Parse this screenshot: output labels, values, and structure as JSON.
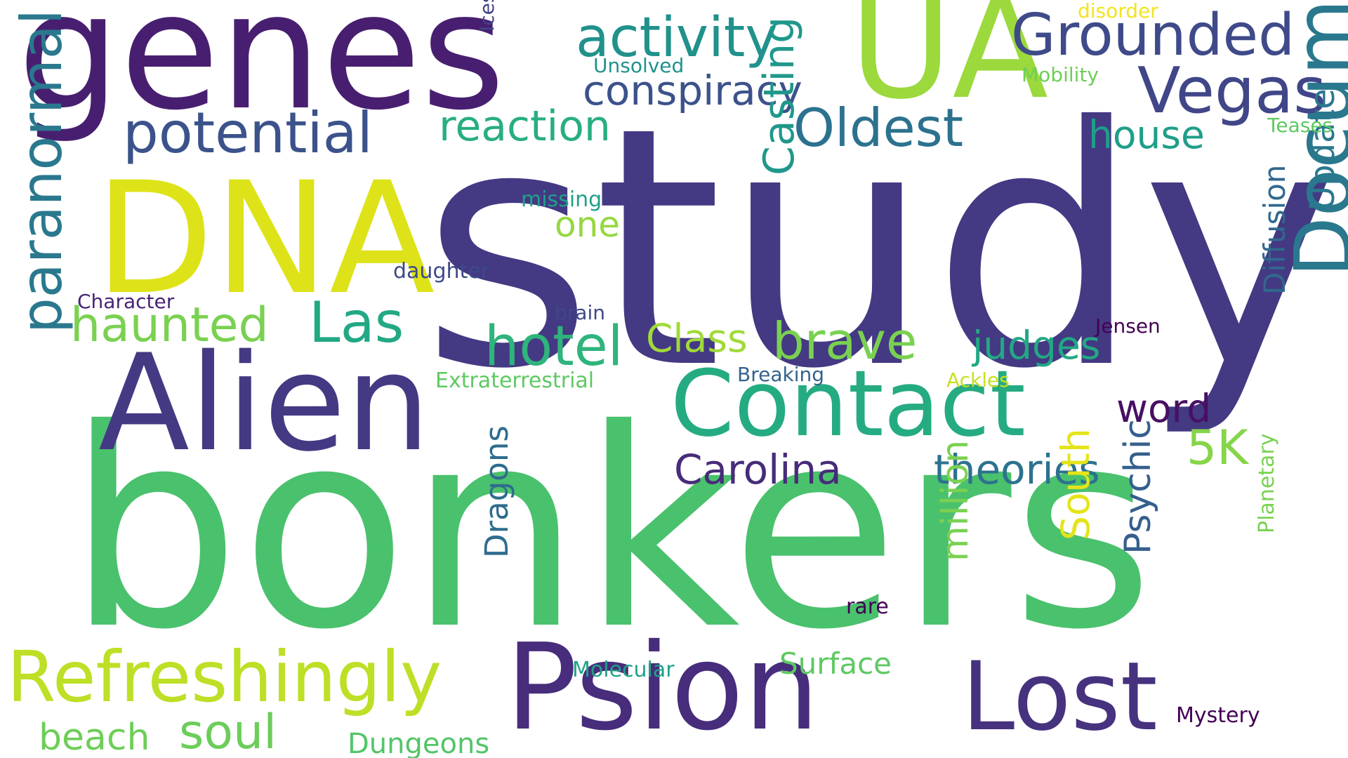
{
  "words": [
    {
      "id": "study",
      "text": "study",
      "color": "#443983"
    },
    {
      "id": "bonkers",
      "text": "bonkers",
      "color": "#4ac16d"
    },
    {
      "id": "genes",
      "text": "genes",
      "color": "#481f70"
    },
    {
      "id": "alien",
      "text": "Alien",
      "color": "#443983"
    },
    {
      "id": "dna",
      "text": "DNA",
      "color": "#dde318"
    },
    {
      "id": "ua",
      "text": "UA",
      "color": "#9bd93c"
    },
    {
      "id": "psion",
      "text": "Psion",
      "color": "#472d7b"
    },
    {
      "id": "contact",
      "text": "Contact",
      "color": "#25ab82"
    },
    {
      "id": "documentary",
      "text": "Documentary",
      "color": "#2a788e"
    },
    {
      "id": "lost",
      "text": "Lost",
      "color": "#46327e"
    },
    {
      "id": "refreshingly",
      "text": "Refreshingly",
      "color": "#bddf26"
    },
    {
      "id": "grounded",
      "text": "Grounded",
      "color": "#3e4a89"
    },
    {
      "id": "vegas",
      "text": "Vegas",
      "color": "#404688"
    },
    {
      "id": "potential",
      "text": "potential",
      "color": "#3b528b"
    },
    {
      "id": "activity",
      "text": "activity",
      "color": "#21918c"
    },
    {
      "id": "paranormal",
      "text": "paranormal",
      "color": "#2a788e"
    },
    {
      "id": "oldest",
      "text": "Oldest",
      "color": "#2c728e"
    },
    {
      "id": "las",
      "text": "Las",
      "color": "#22a884"
    },
    {
      "id": "haunted",
      "text": "haunted",
      "color": "#7ad151"
    },
    {
      "id": "hotel",
      "text": "hotel",
      "color": "#2fb47c"
    },
    {
      "id": "brave",
      "text": "brave",
      "color": "#7ad151"
    },
    {
      "id": "conspiracy",
      "text": "conspiracy",
      "color": "#3b528b"
    },
    {
      "id": "reaction",
      "text": "reaction",
      "color": "#28ae80"
    },
    {
      "id": "casting",
      "text": "Casting",
      "color": "#1f988b"
    },
    {
      "id": "house",
      "text": "house",
      "color": "#1f9e89"
    },
    {
      "id": "update",
      "text": "Update",
      "color": "#2a788e"
    },
    {
      "id": "diffusion",
      "text": "Diffusion",
      "color": "#31688e"
    },
    {
      "id": "5k",
      "text": "5K",
      "color": "#86d549"
    },
    {
      "id": "carolina",
      "text": "Carolina",
      "color": "#472c7a"
    },
    {
      "id": "theories",
      "text": "theories",
      "color": "#2c728e"
    },
    {
      "id": "judges",
      "text": "judges",
      "color": "#22a884"
    },
    {
      "id": "class",
      "text": "Class",
      "color": "#a0da39"
    },
    {
      "id": "word",
      "text": "word",
      "color": "#471063"
    },
    {
      "id": "million",
      "text": "million",
      "color": "#7ad151"
    },
    {
      "id": "south",
      "text": "South",
      "color": "#e5e419"
    },
    {
      "id": "psychic",
      "text": "Psychic",
      "color": "#355f8d"
    },
    {
      "id": "dragons",
      "text": "Dragons",
      "color": "#2f6c8e"
    },
    {
      "id": "soul",
      "text": "soul",
      "color": "#6ccd5a"
    },
    {
      "id": "beach",
      "text": "beach",
      "color": "#6ece58"
    },
    {
      "id": "dungeons",
      "text": "Dungeons",
      "color": "#52c569"
    },
    {
      "id": "surface",
      "text": "Surface",
      "color": "#5ec962"
    },
    {
      "id": "molecular",
      "text": "Molecular",
      "color": "#1fa287"
    },
    {
      "id": "mystery",
      "text": "Mystery",
      "color": "#440154"
    },
    {
      "id": "planetary",
      "text": "Planetary",
      "color": "#7ad151"
    },
    {
      "id": "rare",
      "text": "rare",
      "color": "#440154"
    },
    {
      "id": "one",
      "text": "one",
      "color": "#95d840"
    },
    {
      "id": "missing",
      "text": "missing",
      "color": "#1fa088"
    },
    {
      "id": "daughter",
      "text": "daughter",
      "color": "#3e4989"
    },
    {
      "id": "character",
      "text": "Character",
      "color": "#482475"
    },
    {
      "id": "brain",
      "text": "brain",
      "color": "#3e4989"
    },
    {
      "id": "extraterrestrial",
      "text": "Extraterrestrial",
      "color": "#5ec962"
    },
    {
      "id": "breaking",
      "text": "Breaking",
      "color": "#33638d"
    },
    {
      "id": "ackles",
      "text": "Ackles",
      "color": "#c8e020"
    },
    {
      "id": "jensen",
      "text": "Jensen",
      "color": "#440154"
    },
    {
      "id": "unsolved",
      "text": "Unsolved",
      "color": "#21918c"
    },
    {
      "id": "ices",
      "text": "Ices",
      "color": "#414487"
    },
    {
      "id": "mobility",
      "text": "Mobility",
      "color": "#6ece58"
    },
    {
      "id": "teases",
      "text": "Teases",
      "color": "#5ec962"
    },
    {
      "id": "disorder",
      "text": "disorder",
      "color": "#f1e51d"
    }
  ]
}
